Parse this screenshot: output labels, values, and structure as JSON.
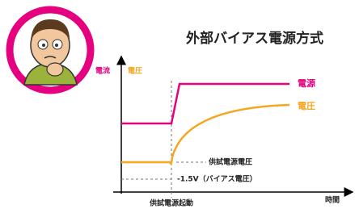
{
  "title": "外部バイアス電源方式",
  "axis_labels": {
    "current": "電流",
    "voltage": "電圧",
    "time": "時間"
  },
  "curve_labels": {
    "power": "電源",
    "voltage": "電圧"
  },
  "annotations": {
    "test_voltage": "供試電源電圧",
    "bias_voltage": "-1.5V（バイアス電圧）",
    "startup": "供試電源起動"
  }
}
